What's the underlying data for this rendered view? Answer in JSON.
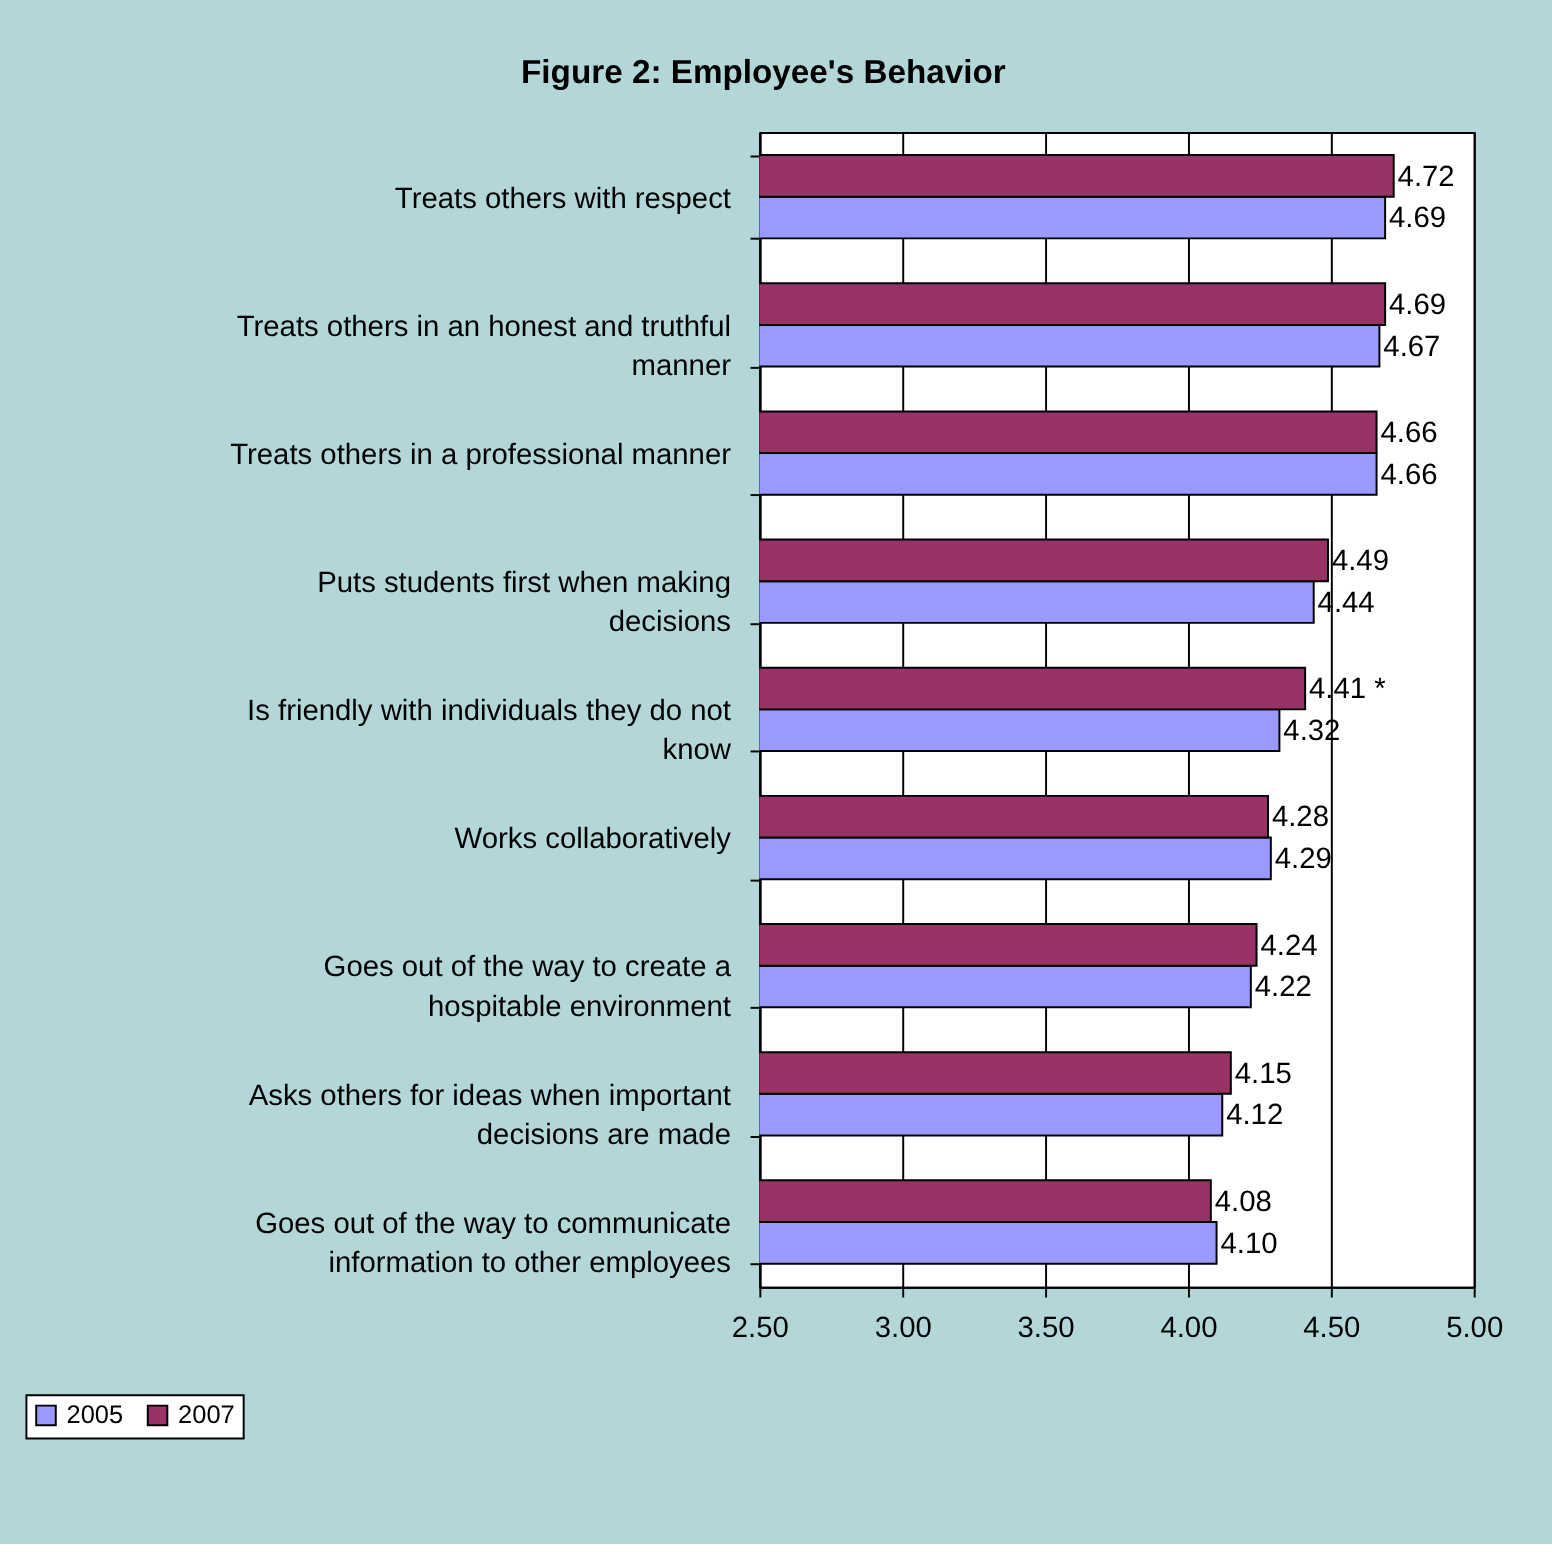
{
  "chart_data": {
    "type": "bar",
    "orientation": "horizontal",
    "title": "Figure 2: Employee's Behavior",
    "categories": [
      "Treats others with respect",
      "Treats others in an honest and truthful manner",
      "Treats others in a professional manner",
      "Puts students first when making decisions",
      "Is friendly with individuals they do not know",
      "Works collaboratively",
      "Goes out of the way to create a hospitable environment",
      "Asks others for ideas when important decisions are made",
      "Goes out of the way to communicate information to other employees"
    ],
    "series": [
      {
        "name": "2005",
        "color": "#9999ff",
        "values": [
          4.69,
          4.67,
          4.66,
          4.44,
          4.32,
          4.29,
          4.22,
          4.12,
          4.1
        ],
        "value_labels": [
          "4.69",
          "4.67",
          "4.66",
          "4.44",
          "4.32",
          "4.29",
          "4.22",
          "4.12",
          "4.10"
        ]
      },
      {
        "name": "2007",
        "color": "#993366",
        "values": [
          4.72,
          4.69,
          4.66,
          4.49,
          4.41,
          4.28,
          4.24,
          4.15,
          4.08
        ],
        "value_labels": [
          "4.72",
          "4.69",
          "4.66",
          "4.49",
          "4.41 *",
          "4.28",
          "4.24",
          "4.15",
          "4.08"
        ]
      }
    ],
    "xlim": [
      2.5,
      5.0
    ],
    "xticks": [
      {
        "value": 2.5,
        "label": "2.50"
      },
      {
        "value": 3.0,
        "label": "3.00"
      },
      {
        "value": 3.5,
        "label": "3.50"
      },
      {
        "value": 4.0,
        "label": "4.00"
      },
      {
        "value": 4.5,
        "label": "4.50"
      },
      {
        "value": 5.0,
        "label": "5.00"
      }
    ],
    "grid": "x",
    "legend": "bottom left"
  }
}
